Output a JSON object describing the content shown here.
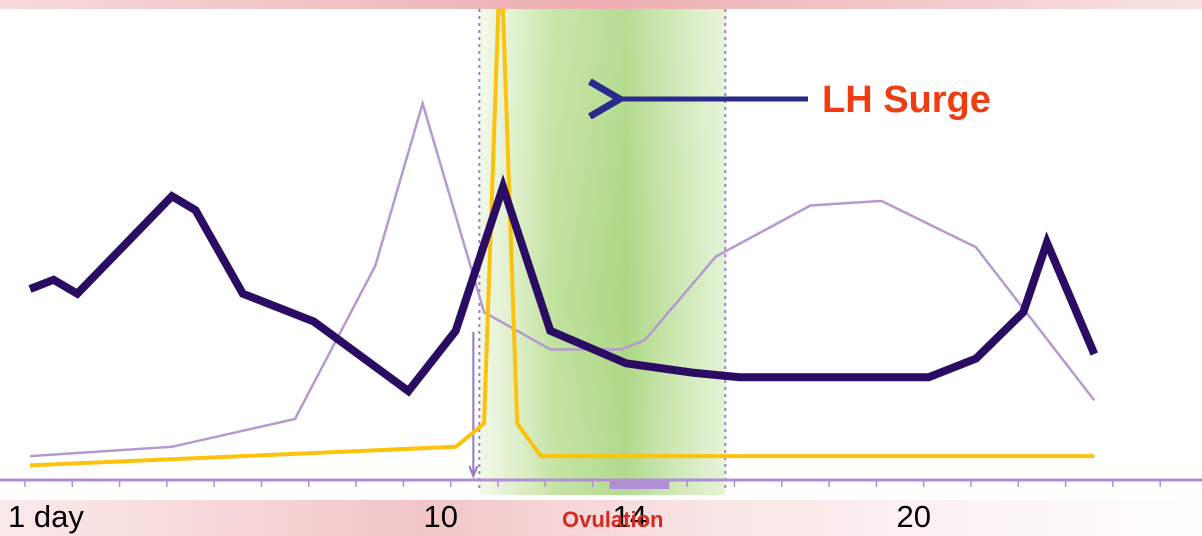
{
  "chart_data": {
    "type": "line",
    "title": "",
    "xlabel": "",
    "ylabel": "",
    "grid": false,
    "xlim": [
      1,
      28
    ],
    "ylim": [
      0,
      100
    ],
    "x_ticks": [
      {
        "x": 1,
        "label": "1 day"
      },
      {
        "x": 10,
        "label": "10"
      },
      {
        "x": 14,
        "label": "14"
      },
      {
        "x": 20,
        "label": "20"
      }
    ],
    "x_annotation": {
      "x": 14.5,
      "label": "Ovulation"
    },
    "fertile_window": {
      "x_start": 10.5,
      "x_end": 15.7
    },
    "annotations": [
      {
        "label": "LH Surge",
        "points_to_x": 13.3
      }
    ],
    "series": [
      {
        "color": "#2a0c63",
        "style": "thick",
        "points": [
          [
            1,
            39
          ],
          [
            1.5,
            41
          ],
          [
            2,
            38
          ],
          [
            4,
            59
          ],
          [
            4.5,
            56
          ],
          [
            5.5,
            38
          ],
          [
            7,
            32
          ],
          [
            9,
            17
          ],
          [
            10,
            30
          ],
          [
            11,
            61
          ],
          [
            12,
            30
          ],
          [
            13.6,
            23
          ],
          [
            15,
            21
          ],
          [
            16,
            20
          ],
          [
            20,
            20
          ],
          [
            21,
            24
          ],
          [
            22,
            34
          ],
          [
            22.5,
            49
          ],
          [
            23.5,
            25
          ]
        ]
      },
      {
        "color": "#b59ad0",
        "style": "thin",
        "points": [
          [
            1,
            3
          ],
          [
            4,
            5
          ],
          [
            6.6,
            11
          ],
          [
            8.3,
            44
          ],
          [
            9.3,
            79
          ],
          [
            10.6,
            34
          ],
          [
            12,
            26
          ],
          [
            13.5,
            26
          ],
          [
            14,
            28
          ],
          [
            15.5,
            46
          ],
          [
            17.5,
            57
          ],
          [
            19,
            58
          ],
          [
            21,
            48
          ],
          [
            23.5,
            15
          ]
        ]
      },
      {
        "color": "#fcc20c",
        "style": "medium",
        "points": [
          [
            1,
            1
          ],
          [
            10,
            5
          ],
          [
            10.6,
            10
          ],
          [
            10.9,
            99
          ],
          [
            11,
            99
          ],
          [
            11.3,
            10
          ],
          [
            11.8,
            3
          ],
          [
            23.5,
            3
          ]
        ]
      }
    ]
  }
}
